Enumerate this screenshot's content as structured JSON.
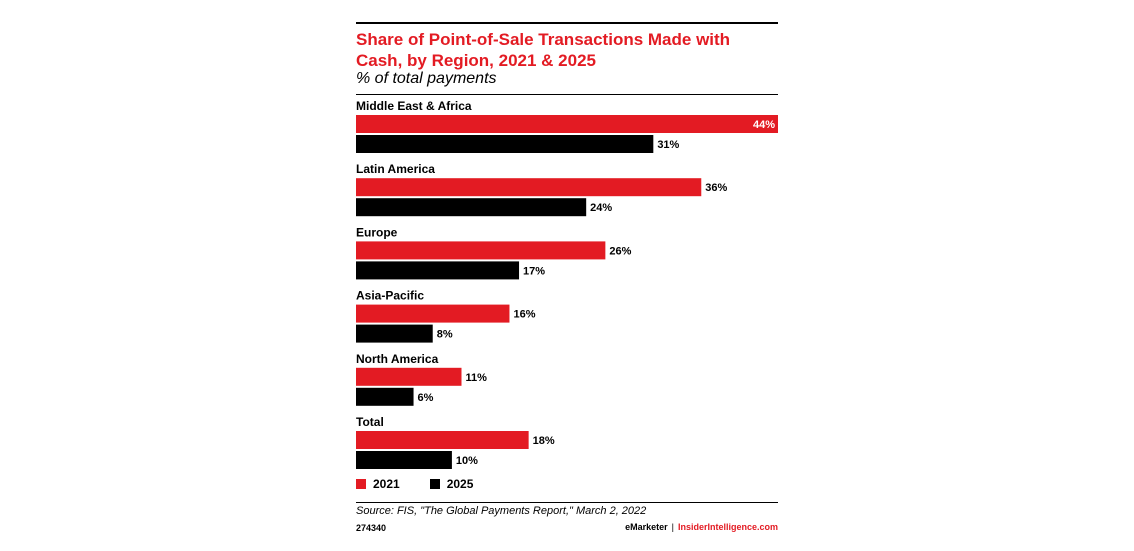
{
  "title": "Share of Point-of-Sale Transactions Made with Cash, by Region, 2021 & 2025",
  "subtitle": "% of total payments",
  "source": "Source: FIS, \"The Global Payments Report,\" March 2, 2022",
  "chart_id": "274340",
  "branding": {
    "emarketer": "eMarketer",
    "separator": "|",
    "insider": "InsiderIntelligence.com"
  },
  "colors": {
    "series_2021": "#e31b23",
    "series_2025": "#000000"
  },
  "legend": [
    {
      "label": "2021",
      "color": "#e31b23"
    },
    {
      "label": "2025",
      "color": "#000000"
    }
  ],
  "chart_data": {
    "type": "bar",
    "orientation": "horizontal",
    "categories": [
      "Middle East & Africa",
      "Latin America",
      "Europe",
      "Asia-Pacific",
      "North America",
      "Total"
    ],
    "series": [
      {
        "name": "2021",
        "values": [
          44,
          36,
          26,
          16,
          11,
          18
        ],
        "labels": [
          "44%",
          "36%",
          "26%",
          "16%",
          "11%",
          "18%"
        ]
      },
      {
        "name": "2025",
        "values": [
          31,
          24,
          17,
          8,
          6,
          10
        ],
        "labels": [
          "31%",
          "24%",
          "17%",
          "8%",
          "6%",
          "10%"
        ]
      }
    ],
    "xlim": [
      0,
      44
    ],
    "grid": false,
    "legend_position": "bottom-left"
  }
}
